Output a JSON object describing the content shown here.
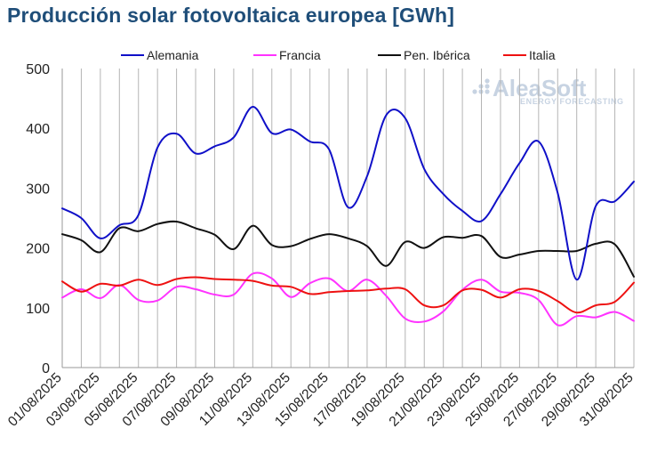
{
  "title": "Producción solar fotovoltaica europea [GWh]",
  "watermark": {
    "brand": "AleaSoft",
    "tagline": "ENERGY FORECASTING"
  },
  "chart_data": {
    "type": "line",
    "title": "Producción solar fotovoltaica europea [GWh]",
    "xlabel": "",
    "ylabel": "",
    "ylim": [
      0,
      500
    ],
    "yticks": [
      0,
      100,
      200,
      300,
      400,
      500
    ],
    "grid": "vertical",
    "legend_position": "top",
    "x": [
      "01/08/2025",
      "02/08/2025",
      "03/08/2025",
      "04/08/2025",
      "05/08/2025",
      "06/08/2025",
      "07/08/2025",
      "08/08/2025",
      "09/08/2025",
      "10/08/2025",
      "11/08/2025",
      "12/08/2025",
      "13/08/2025",
      "14/08/2025",
      "15/08/2025",
      "16/08/2025",
      "17/08/2025",
      "18/08/2025",
      "19/08/2025",
      "20/08/2025",
      "21/08/2025",
      "22/08/2025",
      "23/08/2025",
      "24/08/2025",
      "25/08/2025",
      "26/08/2025",
      "27/08/2025",
      "28/08/2025",
      "29/08/2025",
      "30/08/2025",
      "31/08/2025"
    ],
    "xtick_labels": [
      "01/08/2025",
      "03/08/2025",
      "05/08/2025",
      "07/08/2025",
      "09/08/2025",
      "11/08/2025",
      "13/08/2025",
      "15/08/2025",
      "17/08/2025",
      "19/08/2025",
      "21/08/2025",
      "23/08/2025",
      "25/08/2025",
      "27/08/2025",
      "29/08/2025",
      "31/08/2025"
    ],
    "series": [
      {
        "name": "Alemania",
        "color": "#1010c8",
        "values": [
          266,
          250,
          216,
          238,
          255,
          368,
          391,
          358,
          370,
          385,
          436,
          392,
          398,
          378,
          365,
          268,
          320,
          422,
          417,
          332,
          290,
          262,
          245,
          290,
          342,
          378,
          292,
          147,
          270,
          278,
          311
        ]
      },
      {
        "name": "Francia",
        "color": "#ff33ff",
        "values": [
          117,
          131,
          116,
          138,
          113,
          112,
          135,
          131,
          122,
          122,
          157,
          149,
          118,
          141,
          149,
          128,
          147,
          120,
          82,
          77,
          94,
          130,
          147,
          127,
          125,
          113,
          71,
          86,
          84,
          93,
          78
        ]
      },
      {
        "name": "Pen. Ibérica",
        "color": "#111111",
        "values": [
          223,
          213,
          193,
          233,
          228,
          240,
          244,
          233,
          222,
          198,
          237,
          205,
          203,
          215,
          223,
          216,
          203,
          170,
          210,
          200,
          218,
          217,
          220,
          185,
          189,
          195,
          195,
          195,
          207,
          206,
          152
        ]
      },
      {
        "name": "Italia",
        "color": "#ee1111",
        "values": [
          144,
          127,
          140,
          137,
          147,
          138,
          148,
          151,
          148,
          147,
          145,
          137,
          135,
          123,
          126,
          128,
          129,
          132,
          131,
          104,
          104,
          129,
          130,
          117,
          131,
          128,
          111,
          92,
          104,
          110,
          142
        ]
      }
    ]
  }
}
